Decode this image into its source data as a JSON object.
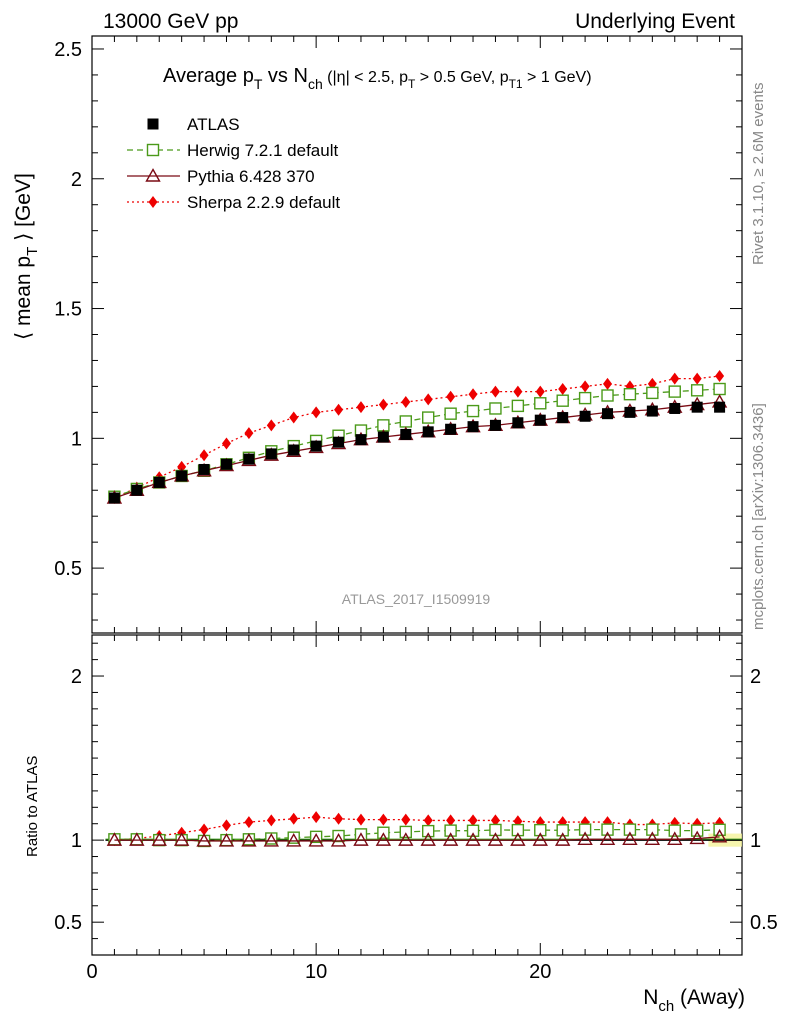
{
  "header": {
    "left": "13000 GeV pp",
    "right": "Underlying Event"
  },
  "side_labels": {
    "rivet": "Rivet 3.1.10, ≥ 2.6M events",
    "mcplots": "mcplots.cern.ch [arXiv:1306.3436]"
  },
  "title": {
    "base": "Average p",
    "sub1": "T",
    "vs": " vs N",
    "sub2": "ch",
    "cuts_a": " (|η| < 2.5, p",
    "sub3": "T",
    "cuts_b": " > 0.5 GeV, p",
    "sub4": "T1",
    "cuts_c": " > 1 GeV)"
  },
  "ylabel_main": {
    "a": "⟨ mean p",
    "sub": "T",
    "b": " ⟩ [GeV]"
  },
  "ylabel_ratio": "Ratio to ATLAS",
  "xlabel": {
    "a": "N",
    "sub": "ch",
    "b": " (Away)"
  },
  "watermark": "ATLAS_2017_I1509919",
  "legend": [
    {
      "label": "ATLAS",
      "color": "#000000",
      "marker": "filled-square",
      "line": "none"
    },
    {
      "label": "Herwig 7.2.1 default",
      "color": "#4b9a1a",
      "marker": "open-square",
      "line": "dashed"
    },
    {
      "label": "Pythia 6.428 370",
      "color": "#7a0a14",
      "marker": "open-triangle",
      "line": "solid"
    },
    {
      "label": "Sherpa 2.2.9 default",
      "color": "#ee0000",
      "marker": "filled-diamond",
      "line": "dotted"
    }
  ],
  "chart_data": [
    {
      "type": "scatter",
      "panel": "main",
      "xlim": [
        0,
        29
      ],
      "ylim": [
        0.25,
        2.55
      ],
      "yticks": [
        "0.5",
        "1",
        "1.5",
        "2",
        "2.5"
      ],
      "xticks": [
        "0",
        "10",
        "20"
      ],
      "x": [
        1,
        2,
        3,
        4,
        5,
        6,
        7,
        8,
        9,
        10,
        11,
        12,
        13,
        14,
        15,
        16,
        17,
        18,
        19,
        20,
        21,
        22,
        23,
        24,
        25,
        26,
        27,
        28
      ],
      "series": [
        {
          "name": "ATLAS",
          "values": [
            0.77,
            0.8,
            0.83,
            0.855,
            0.88,
            0.9,
            0.92,
            0.94,
            0.955,
            0.97,
            0.985,
            0.995,
            1.005,
            1.015,
            1.025,
            1.035,
            1.045,
            1.05,
            1.06,
            1.07,
            1.08,
            1.085,
            1.095,
            1.1,
            1.105,
            1.115,
            1.12,
            1.12
          ]
        },
        {
          "name": "Herwig 7.2.1 default",
          "values": [
            0.775,
            0.805,
            0.83,
            0.855,
            0.875,
            0.9,
            0.925,
            0.95,
            0.97,
            0.99,
            1.01,
            1.03,
            1.05,
            1.065,
            1.08,
            1.095,
            1.105,
            1.115,
            1.125,
            1.135,
            1.145,
            1.155,
            1.165,
            1.17,
            1.175,
            1.18,
            1.185,
            1.19
          ]
        },
        {
          "name": "Pythia 6.428 370",
          "values": [
            0.77,
            0.8,
            0.83,
            0.855,
            0.875,
            0.895,
            0.915,
            0.935,
            0.95,
            0.965,
            0.98,
            0.995,
            1.005,
            1.015,
            1.025,
            1.035,
            1.045,
            1.05,
            1.06,
            1.07,
            1.08,
            1.09,
            1.1,
            1.105,
            1.11,
            1.12,
            1.13,
            1.14
          ]
        },
        {
          "name": "Sherpa 2.2.9 default",
          "values": [
            0.77,
            0.81,
            0.85,
            0.89,
            0.935,
            0.98,
            1.02,
            1.05,
            1.08,
            1.1,
            1.11,
            1.12,
            1.13,
            1.14,
            1.15,
            1.16,
            1.17,
            1.18,
            1.18,
            1.18,
            1.19,
            1.2,
            1.21,
            1.2,
            1.21,
            1.23,
            1.23,
            1.24
          ]
        }
      ]
    },
    {
      "type": "scatter",
      "panel": "ratio",
      "xlim": [
        0,
        29
      ],
      "ylim": [
        0.3,
        2.25
      ],
      "yticks": [
        "0.5",
        "1",
        "2"
      ],
      "x": [
        1,
        2,
        3,
        4,
        5,
        6,
        7,
        8,
        9,
        10,
        11,
        12,
        13,
        14,
        15,
        16,
        17,
        18,
        19,
        20,
        21,
        22,
        23,
        24,
        25,
        26,
        27,
        28
      ],
      "series": [
        {
          "name": "Herwig 7.2.1 default",
          "values": [
            1.005,
            1.005,
            1.0,
            1.0,
            0.995,
            1.0,
            1.005,
            1.01,
            1.015,
            1.02,
            1.025,
            1.035,
            1.045,
            1.05,
            1.055,
            1.058,
            1.057,
            1.062,
            1.061,
            1.061,
            1.06,
            1.064,
            1.064,
            1.064,
            1.064,
            1.058,
            1.058,
            1.063
          ]
        },
        {
          "name": "Pythia 6.428 370",
          "values": [
            1.0,
            1.0,
            1.0,
            1.0,
            0.995,
            0.995,
            0.995,
            0.995,
            0.995,
            0.995,
            0.995,
            1.0,
            1.0,
            1.0,
            1.0,
            1.0,
            1.0,
            1.0,
            1.0,
            1.0,
            1.0,
            1.005,
            1.005,
            1.005,
            1.005,
            1.005,
            1.01,
            1.02
          ]
        },
        {
          "name": "Sherpa 2.2.9 default",
          "values": [
            1.0,
            1.01,
            1.025,
            1.045,
            1.065,
            1.09,
            1.11,
            1.12,
            1.13,
            1.14,
            1.13,
            1.125,
            1.125,
            1.125,
            1.12,
            1.12,
            1.12,
            1.12,
            1.115,
            1.11,
            1.11,
            1.11,
            1.11,
            1.095,
            1.095,
            1.105,
            1.1,
            1.105
          ]
        }
      ]
    }
  ]
}
